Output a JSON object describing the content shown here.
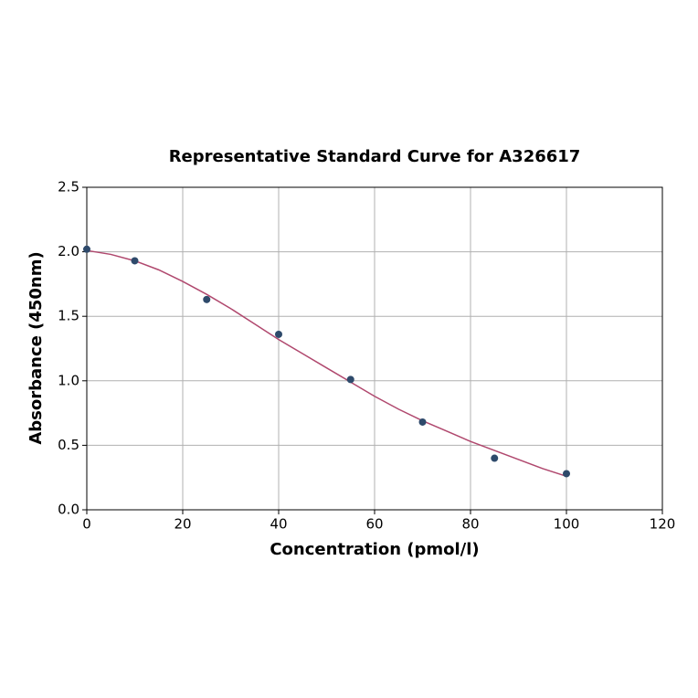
{
  "chart_data": {
    "type": "scatter",
    "title": "Representative Standard Curve for A326617",
    "xlabel": "Concentration (pmol/l)",
    "ylabel": "Absorbance (450nm)",
    "series": [
      {
        "type": "scatter",
        "color": "#2e4a6b",
        "x": [
          0,
          10,
          25,
          40,
          55,
          70,
          85,
          100
        ],
        "values": [
          2.02,
          1.93,
          1.63,
          1.36,
          1.01,
          0.68,
          0.4,
          0.28
        ]
      },
      {
        "type": "line",
        "color": "#b0486e",
        "x": [
          0,
          5,
          10,
          15,
          20,
          25,
          30,
          35,
          40,
          45,
          50,
          55,
          60,
          65,
          70,
          75,
          80,
          85,
          90,
          95,
          100
        ],
        "values": [
          2.01,
          1.98,
          1.93,
          1.86,
          1.77,
          1.67,
          1.56,
          1.44,
          1.32,
          1.21,
          1.1,
          0.99,
          0.88,
          0.78,
          0.69,
          0.61,
          0.53,
          0.46,
          0.39,
          0.32,
          0.26
        ]
      }
    ],
    "xlim": [
      0,
      120
    ],
    "ylim": [
      0,
      2.5
    ],
    "xticks": [
      0,
      20,
      40,
      60,
      80,
      100,
      120
    ],
    "yticks": [
      {
        "value": 0,
        "label": "0.0"
      },
      {
        "value": 0.5,
        "label": "0.5"
      },
      {
        "value": 1,
        "label": "1.0"
      },
      {
        "value": 1.5,
        "label": "1.5"
      },
      {
        "value": 2,
        "label": "2.0"
      },
      {
        "value": 2.5,
        "label": "2.5"
      }
    ],
    "grid": true
  }
}
